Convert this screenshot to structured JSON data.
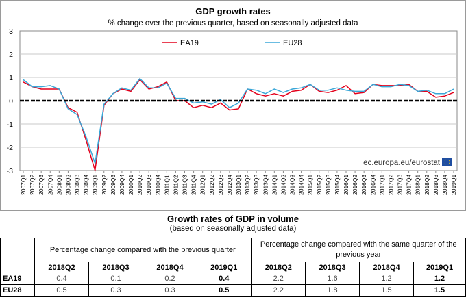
{
  "chart_data": {
    "type": "line",
    "title": "GDP growth rates",
    "subtitle": "% change over the previous quarter, based on seasonally adjusted data",
    "ylim": [
      -3,
      3
    ],
    "yticks": [
      "3",
      "2",
      "1",
      "0",
      "-1",
      "-2",
      "-3"
    ],
    "grid": true,
    "legend_position": "top-center",
    "categories": [
      "2007Q1",
      "2007Q2",
      "2007Q3",
      "2007Q4",
      "2008Q1",
      "2008Q2",
      "2008Q3",
      "2008Q4",
      "2009Q1",
      "2009Q2",
      "2009Q3",
      "2009Q4",
      "2010Q1",
      "2010Q2",
      "2010Q3",
      "2010Q4",
      "2011Q1",
      "2011Q2",
      "2011Q3",
      "2011Q4",
      "2012Q1",
      "2012Q2",
      "2012Q3",
      "2012Q4",
      "2013Q1",
      "2013Q2",
      "2013Q3",
      "2013Q4",
      "2014Q1",
      "2014Q2",
      "2014Q3",
      "2014Q4",
      "2015Q1",
      "2015Q2",
      "2015Q3",
      "2015Q4",
      "2016Q1",
      "2016Q2",
      "2016Q3",
      "2016Q4",
      "2017Q1",
      "2017Q2",
      "2017Q3",
      "2017Q4",
      "2018Q1",
      "2018Q2",
      "2018Q3",
      "2018Q4",
      "2019Q1"
    ],
    "series": [
      {
        "name": "EA19",
        "color": "#e3001b",
        "values": [
          0.8,
          0.6,
          0.5,
          0.5,
          0.5,
          -0.3,
          -0.5,
          -1.7,
          -3.0,
          -0.2,
          0.3,
          0.5,
          0.4,
          0.9,
          0.5,
          0.6,
          0.8,
          0.0,
          0.0,
          -0.3,
          -0.2,
          -0.3,
          -0.1,
          -0.4,
          -0.35,
          0.5,
          0.3,
          0.2,
          0.3,
          0.2,
          0.4,
          0.45,
          0.7,
          0.4,
          0.35,
          0.45,
          0.65,
          0.3,
          0.35,
          0.7,
          0.65,
          0.65,
          0.65,
          0.7,
          0.4,
          0.4,
          0.15,
          0.2,
          0.35
        ]
      },
      {
        "name": "EU28",
        "color": "#3aa7d8",
        "values": [
          0.9,
          0.6,
          0.6,
          0.65,
          0.5,
          -0.35,
          -0.6,
          -1.55,
          -2.7,
          -0.15,
          0.3,
          0.55,
          0.45,
          0.95,
          0.55,
          0.55,
          0.75,
          0.1,
          0.1,
          -0.1,
          -0.05,
          -0.15,
          0.05,
          -0.3,
          -0.1,
          0.5,
          0.45,
          0.3,
          0.5,
          0.35,
          0.5,
          0.55,
          0.7,
          0.45,
          0.45,
          0.55,
          0.45,
          0.4,
          0.4,
          0.7,
          0.6,
          0.6,
          0.7,
          0.65,
          0.4,
          0.45,
          0.3,
          0.3,
          0.5
        ]
      }
    ],
    "legend_labels": {
      "ea": "EA19",
      "eu": "EU28"
    },
    "credit": "ec.europa.eu/eurostat"
  },
  "colors": {
    "ea": "#e3001b",
    "eu": "#3aa7d8",
    "flag": "#1f4ea1",
    "flag_stars": "#ffd200"
  },
  "table": {
    "title": "Growth rates of GDP in volume",
    "subtitle": "(based on seasonally adjusted data)",
    "group1": "Percentage change compared with the previous quarter",
    "group2": "Percentage change compared with the same quarter of the previous year",
    "quarters": [
      "2018Q2",
      "2018Q3",
      "2018Q4",
      "2019Q1"
    ],
    "rows": [
      {
        "label": "EA19",
        "qoq": [
          "0.4",
          "0.1",
          "0.2",
          "0.4"
        ],
        "yoy": [
          "2.2",
          "1.6",
          "1.2",
          "1.2"
        ]
      },
      {
        "label": "EU28",
        "qoq": [
          "0.5",
          "0.3",
          "0.3",
          "0.5"
        ],
        "yoy": [
          "2.2",
          "1.8",
          "1.5",
          "1.5"
        ]
      }
    ]
  }
}
